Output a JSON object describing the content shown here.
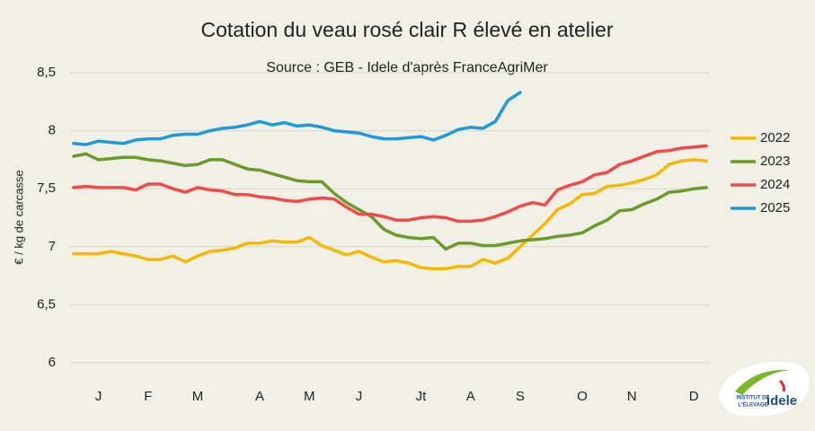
{
  "chart_data": {
    "type": "line",
    "title": "Cotation du veau rosé clair R élevé en atelier",
    "subtitle": "Source : GEB - Idele d'après FranceAgriMer",
    "y_label": "€ / kg de carcasse",
    "categories": [
      null,
      null,
      "J",
      null,
      null,
      null,
      "F",
      null,
      null,
      null,
      "M",
      null,
      null,
      null,
      null,
      "A",
      null,
      null,
      null,
      "M",
      null,
      null,
      null,
      "J",
      null,
      null,
      null,
      null,
      "Jt",
      null,
      null,
      null,
      "A",
      null,
      null,
      null,
      "S",
      null,
      null,
      null,
      null,
      "O",
      null,
      null,
      null,
      "N",
      null,
      null,
      null,
      null,
      "D",
      null
    ],
    "ylim": [
      6,
      8.5
    ],
    "yticks": [
      6,
      {
        "value": 6.5,
        "label": "6,5"
      },
      7,
      {
        "value": 7.5,
        "label": "7,5"
      },
      8,
      {
        "value": 8.5,
        "label": "8,5"
      }
    ],
    "grid": true,
    "legend": "right",
    "series": [
      {
        "name": "2022",
        "color": "#f5b800",
        "values": [
          6.94,
          6.94,
          6.94,
          6.96,
          6.94,
          6.92,
          6.89,
          6.89,
          6.92,
          6.87,
          6.92,
          6.96,
          6.97,
          6.99,
          7.03,
          7.03,
          7.05,
          7.04,
          7.04,
          7.08,
          7.01,
          6.97,
          6.93,
          6.96,
          6.91,
          6.87,
          6.88,
          6.86,
          6.82,
          6.81,
          6.81,
          6.83,
          6.83,
          6.89,
          6.86,
          6.9,
          7.0,
          7.1,
          7.2,
          7.32,
          7.37,
          7.45,
          7.46,
          7.52,
          7.53,
          7.55,
          7.58,
          7.62,
          7.71,
          7.74,
          7.75,
          7.74
        ]
      },
      {
        "name": "2023",
        "color": "#6b9a2a",
        "values": [
          7.78,
          7.8,
          7.75,
          7.76,
          7.77,
          7.77,
          7.75,
          7.74,
          7.72,
          7.7,
          7.71,
          7.75,
          7.75,
          7.71,
          7.67,
          7.66,
          7.63,
          7.6,
          7.57,
          7.56,
          7.56,
          7.46,
          7.38,
          7.32,
          7.26,
          7.15,
          7.1,
          7.08,
          7.07,
          7.08,
          6.98,
          7.03,
          7.03,
          7.01,
          7.01,
          7.03,
          7.05,
          7.06,
          7.07,
          7.09,
          7.1,
          7.12,
          7.18,
          7.23,
          7.31,
          7.32,
          7.37,
          7.41,
          7.47,
          7.48,
          7.5,
          7.51
        ]
      },
      {
        "name": "2024",
        "color": "#f04a4a",
        "values": [
          7.51,
          7.52,
          7.51,
          7.51,
          7.51,
          7.49,
          7.54,
          7.54,
          7.5,
          7.47,
          7.51,
          7.49,
          7.48,
          7.45,
          7.45,
          7.43,
          7.42,
          7.4,
          7.39,
          7.41,
          7.42,
          7.41,
          7.34,
          7.28,
          7.28,
          7.26,
          7.23,
          7.23,
          7.25,
          7.26,
          7.25,
          7.22,
          7.22,
          7.23,
          7.26,
          7.3,
          7.35,
          7.38,
          7.36,
          7.49,
          7.53,
          7.56,
          7.62,
          7.64,
          7.71,
          7.74,
          7.78,
          7.82,
          7.83,
          7.85,
          7.86,
          7.87
        ]
      },
      {
        "name": "2025",
        "color": "#1e9ad6",
        "values": [
          7.89,
          7.88,
          7.91,
          7.9,
          7.89,
          7.92,
          7.93,
          7.93,
          7.96,
          7.97,
          7.97,
          8.0,
          8.02,
          8.03,
          8.05,
          8.08,
          8.05,
          8.07,
          8.04,
          8.05,
          8.03,
          8.0,
          7.99,
          7.98,
          7.95,
          7.93,
          7.93,
          7.94,
          7.95,
          7.92,
          7.96,
          8.01,
          8.03,
          8.02,
          8.08,
          8.26,
          8.33,
          null,
          null,
          null,
          null,
          null,
          null,
          null,
          null,
          null,
          null,
          null,
          null,
          null,
          null,
          null
        ]
      }
    ]
  },
  "logo": {
    "line1": "INSTITUT DE",
    "line2": "L'ÉLEVAGE",
    "name": "idele"
  }
}
